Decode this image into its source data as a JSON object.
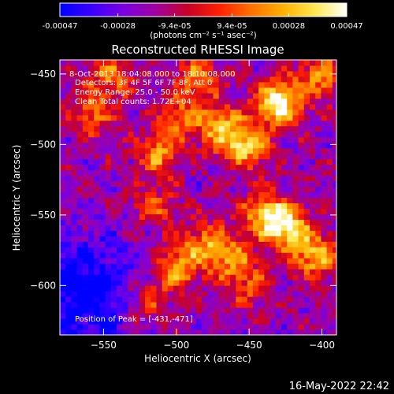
{
  "colorbar": {
    "tick_labels": [
      "-0.00047",
      "-0.00028",
      "-9.4e-05",
      "9.4e-05",
      "0.00028",
      "0.00047"
    ],
    "tick_values": [
      -0.00047,
      -0.00028,
      -9.4e-05,
      9.4e-05,
      0.00028,
      0.00047
    ],
    "range": [
      -0.00047,
      0.00047
    ],
    "units": "(photons cm⁻² s⁻¹ asec⁻²)",
    "colors": [
      "#0000ff",
      "#3a00ff",
      "#7a00e0",
      "#a000a0",
      "#c80028",
      "#ff2000",
      "#ff7000",
      "#ffb000",
      "#ffe850",
      "#ffffff"
    ]
  },
  "chart_data": {
    "type": "heatmap",
    "title": "Reconstructed RHESSI Image",
    "xlabel": "Heliocentric X (arcsec)",
    "ylabel": "Heliocentric Y (arcsec)",
    "xlim": [
      -580,
      -390
    ],
    "ylim": [
      -635,
      -440
    ],
    "x_ticks": [
      -550,
      -500,
      -450,
      -400
    ],
    "y_ticks": [
      -450,
      -500,
      -550,
      -600
    ],
    "annotations": [
      "8-Oct-2013 18:04:08.000 to 18:10:08.000",
      "Detectors: 3F 4F 5F 6F 7F 8F, Att 0",
      "Energy Range: 25.0 - 50.0 keV",
      "Clean     Total counts: 1.72E+04"
    ],
    "peak_label": "Position of Peak = [-431,-471]",
    "peak": [
      -431,
      -471
    ],
    "emission_sources": [
      {
        "x": -430,
        "y": -470,
        "amp": 1.0
      },
      {
        "x": -452,
        "y": -500,
        "amp": 0.75
      },
      {
        "x": -470,
        "y": -487,
        "amp": 0.6
      },
      {
        "x": -485,
        "y": -452,
        "amp": 0.55
      },
      {
        "x": -425,
        "y": -558,
        "amp": 0.85
      },
      {
        "x": -440,
        "y": -548,
        "amp": 0.6
      },
      {
        "x": -405,
        "y": -578,
        "amp": 0.7
      },
      {
        "x": -463,
        "y": -580,
        "amp": 0.55
      },
      {
        "x": -500,
        "y": -588,
        "amp": 0.6
      },
      {
        "x": -482,
        "y": -570,
        "amp": 0.5
      },
      {
        "x": -512,
        "y": -507,
        "amp": 0.55
      },
      {
        "x": -498,
        "y": -480,
        "amp": 0.45
      },
      {
        "x": -545,
        "y": -452,
        "amp": 0.5
      },
      {
        "x": -558,
        "y": -478,
        "amp": 0.45
      },
      {
        "x": -515,
        "y": -545,
        "amp": 0.4
      },
      {
        "x": -520,
        "y": -612,
        "amp": 0.4
      },
      {
        "x": -402,
        "y": -452,
        "amp": 0.55
      },
      {
        "x": -450,
        "y": -600,
        "amp": 0.35
      }
    ],
    "negative_region": {
      "x": -565,
      "y": -605,
      "amp": -0.5
    }
  },
  "footer": {
    "timestamp": "16-May-2022 22:42"
  }
}
